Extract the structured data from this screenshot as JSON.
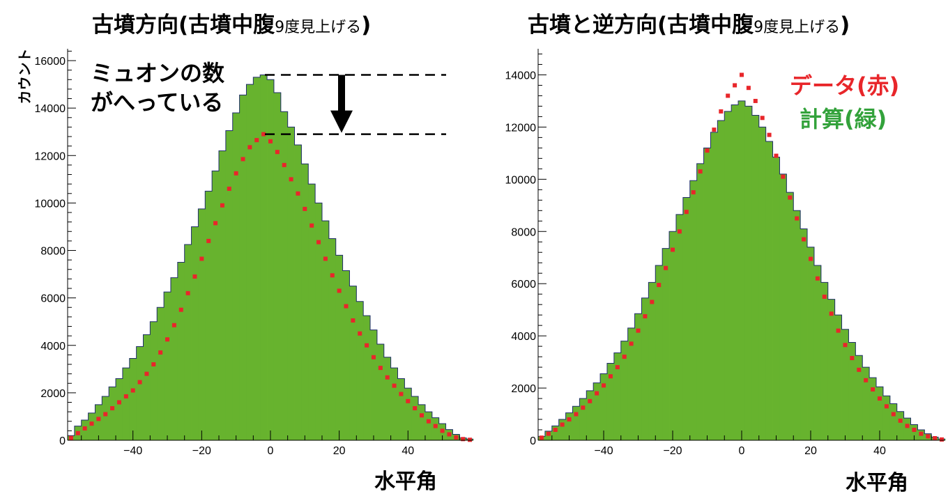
{
  "chart_data": [
    {
      "type": "bar",
      "title_main": "古墳方向(古墳中腹",
      "title_small": "9度見上げる",
      "title_end": ")",
      "xlabel": "水平角",
      "ylabel": "カウント",
      "xlim": [
        -59,
        59
      ],
      "ylim": [
        0,
        16500
      ],
      "xticks": [
        -40,
        -20,
        0,
        20,
        40
      ],
      "yticks": [
        0,
        2000,
        4000,
        6000,
        8000,
        10000,
        12000,
        14000,
        16000
      ],
      "calc_peak": 15400,
      "data_peak": 12900,
      "annotation": [
        "ミュオンの数",
        "がへっている"
      ],
      "series": [
        {
          "kind": "histogram",
          "color": "#67b32e",
          "x": [
            -58,
            -56,
            -54,
            -52,
            -50,
            -48,
            -46,
            -44,
            -42,
            -40,
            -38,
            -36,
            -34,
            -32,
            -30,
            -28,
            -26,
            -24,
            -22,
            -20,
            -18,
            -16,
            -14,
            -12,
            -10,
            -8,
            -6,
            -4,
            -2,
            0,
            2,
            4,
            6,
            8,
            10,
            12,
            14,
            16,
            18,
            20,
            22,
            24,
            26,
            28,
            30,
            32,
            34,
            36,
            38,
            40,
            42,
            44,
            46,
            48,
            50,
            52,
            54,
            56,
            58
          ],
          "values": [
            200,
            600,
            850,
            1150,
            1500,
            1850,
            2250,
            2600,
            3050,
            3450,
            3950,
            4450,
            5000,
            5600,
            6250,
            6850,
            7500,
            8250,
            9000,
            9750,
            10500,
            11350,
            12200,
            13050,
            13800,
            14550,
            15000,
            15300,
            15400,
            15200,
            14650,
            13850,
            13200,
            12450,
            11650,
            10800,
            10000,
            9250,
            8500,
            7800,
            7150,
            6500,
            5850,
            5250,
            4650,
            4050,
            3500,
            3050,
            2600,
            2200,
            1850,
            1500,
            1200,
            950,
            700,
            450,
            250,
            100,
            50
          ]
        },
        {
          "kind": "points",
          "color": "#e8262a",
          "x": [
            -58,
            -56,
            -54,
            -52,
            -50,
            -48,
            -46,
            -44,
            -42,
            -40,
            -38,
            -36,
            -34,
            -32,
            -30,
            -28,
            -26,
            -24,
            -22,
            -20,
            -18,
            -16,
            -14,
            -12,
            -10,
            -8,
            -6,
            -4,
            -2,
            0,
            2,
            4,
            6,
            8,
            10,
            12,
            14,
            16,
            18,
            20,
            22,
            24,
            26,
            28,
            30,
            32,
            34,
            36,
            38,
            40,
            42,
            44,
            46,
            48,
            50,
            52,
            54,
            56,
            58
          ],
          "values": [
            100,
            300,
            500,
            700,
            900,
            1100,
            1350,
            1600,
            1850,
            2100,
            2450,
            2800,
            3200,
            3700,
            4250,
            4850,
            5500,
            6200,
            6900,
            7650,
            8400,
            9150,
            9900,
            10600,
            11250,
            11850,
            12350,
            12650,
            12900,
            12600,
            12150,
            11600,
            11000,
            10400,
            9750,
            9050,
            8350,
            7650,
            6950,
            6300,
            5650,
            5050,
            4500,
            4000,
            3500,
            3050,
            2650,
            2300,
            1950,
            1650,
            1350,
            1050,
            800,
            600,
            400,
            250,
            120,
            50,
            20
          ]
        }
      ]
    },
    {
      "type": "bar",
      "title_main": "古墳と逆方向(古墳中腹",
      "title_small": "9度見上げる",
      "title_end": ")",
      "xlabel": "水平角",
      "xlim": [
        -59,
        59
      ],
      "ylim": [
        0,
        15000
      ],
      "xticks": [
        -40,
        -20,
        0,
        20,
        40
      ],
      "yticks": [
        0,
        2000,
        4000,
        6000,
        8000,
        10000,
        12000,
        14000
      ],
      "legend": {
        "data": "データ(赤)",
        "calc": "計算(緑)"
      },
      "series": [
        {
          "kind": "histogram",
          "color": "#67b32e",
          "x": [
            -58,
            -56,
            -54,
            -52,
            -50,
            -48,
            -46,
            -44,
            -42,
            -40,
            -38,
            -36,
            -34,
            -32,
            -30,
            -28,
            -26,
            -24,
            -22,
            -20,
            -18,
            -16,
            -14,
            -12,
            -10,
            -8,
            -6,
            -4,
            -2,
            0,
            2,
            4,
            6,
            8,
            10,
            12,
            14,
            16,
            18,
            20,
            22,
            24,
            26,
            28,
            30,
            32,
            34,
            36,
            38,
            40,
            42,
            44,
            46,
            48,
            50,
            52,
            54,
            56,
            58
          ],
          "values": [
            150,
            350,
            550,
            800,
            1050,
            1300,
            1600,
            1900,
            2200,
            2550,
            2950,
            3350,
            3800,
            4300,
            4850,
            5450,
            6050,
            6700,
            7350,
            8000,
            8650,
            9300,
            9950,
            10600,
            11200,
            11800,
            12250,
            12600,
            12850,
            13000,
            12800,
            12450,
            12000,
            11450,
            10850,
            10200,
            9500,
            8800,
            8100,
            7400,
            6700,
            6050,
            5400,
            4800,
            4250,
            3750,
            3250,
            2800,
            2400,
            2050,
            1700,
            1400,
            1100,
            850,
            600,
            400,
            250,
            120,
            50
          ]
        },
        {
          "kind": "points",
          "color": "#e8262a",
          "x": [
            -58,
            -56,
            -54,
            -52,
            -50,
            -48,
            -46,
            -44,
            -42,
            -40,
            -38,
            -36,
            -34,
            -32,
            -30,
            -28,
            -26,
            -24,
            -22,
            -20,
            -18,
            -16,
            -14,
            -12,
            -10,
            -8,
            -6,
            -4,
            -2,
            0,
            2,
            4,
            6,
            8,
            10,
            12,
            14,
            16,
            18,
            20,
            22,
            24,
            26,
            28,
            30,
            32,
            34,
            36,
            38,
            40,
            42,
            44,
            46,
            48,
            50,
            52,
            54,
            56,
            58
          ],
          "values": [
            100,
            250,
            400,
            600,
            800,
            1000,
            1250,
            1500,
            1800,
            2100,
            2450,
            2800,
            3200,
            3700,
            4200,
            4750,
            5300,
            5950,
            6600,
            7300,
            8000,
            8750,
            9500,
            10300,
            11100,
            11900,
            12600,
            13200,
            13600,
            14000,
            13500,
            13000,
            12350,
            11700,
            10900,
            10100,
            9300,
            8500,
            7700,
            6950,
            6200,
            5500,
            4850,
            4200,
            3650,
            3150,
            2700,
            2300,
            1950,
            1600,
            1300,
            1000,
            750,
            550,
            400,
            250,
            150,
            80,
            30
          ]
        }
      ]
    }
  ]
}
